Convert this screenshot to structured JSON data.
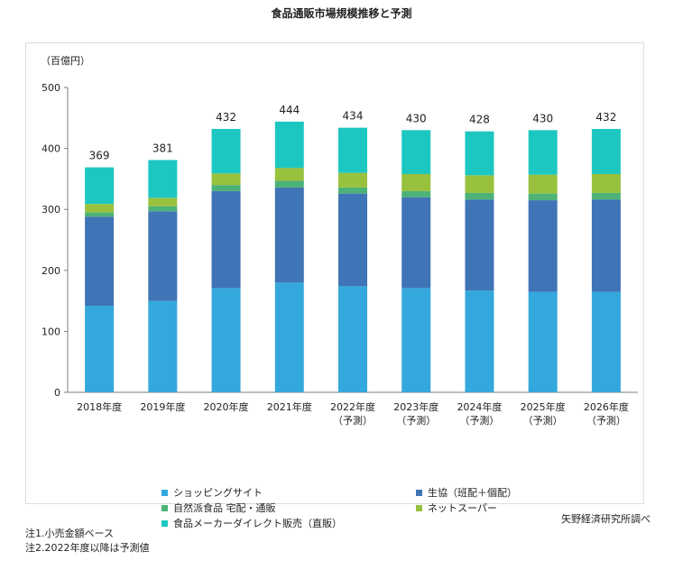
{
  "chart_data": {
    "type": "bar",
    "stacked": true,
    "title": "食品通販市場規模推移と予測",
    "ylabel": "（百億円）",
    "ylim": [
      0,
      500
    ],
    "yticks": [
      0,
      100,
      200,
      300,
      400,
      500
    ],
    "grid": false,
    "legend_position": "bottom",
    "categories": [
      [
        "2018年度"
      ],
      [
        "2019年度"
      ],
      [
        "2020年度"
      ],
      [
        "2021年度"
      ],
      [
        "2022年度",
        "（予測）"
      ],
      [
        "2023年度",
        "（予測）"
      ],
      [
        "2024年度",
        "（予測）"
      ],
      [
        "2025年度",
        "（予測）"
      ],
      [
        "2026年度",
        "（予測）"
      ]
    ],
    "totals": [
      369,
      381,
      432,
      444,
      434,
      430,
      428,
      430,
      432
    ],
    "series": [
      {
        "name": "ショッピングサイト",
        "color": "#34a8dc",
        "values": [
          142,
          150,
          171,
          180,
          174,
          171,
          167,
          165,
          165
        ]
      },
      {
        "name": "生協（班配＋個配）",
        "color": "#3f74b6",
        "values": [
          146,
          147,
          159,
          156,
          152,
          149,
          149,
          150,
          151
        ]
      },
      {
        "name": "自然派食品 宅配・通販",
        "color": "#4cb277",
        "values": [
          7,
          8,
          10,
          11,
          10,
          10,
          11,
          11,
          11
        ]
      },
      {
        "name": "ネットスーパー",
        "color": "#98c13d",
        "values": [
          14,
          14,
          19,
          21,
          24,
          28,
          29,
          31,
          31
        ]
      },
      {
        "name": "食品メーカーダイレクト販売（直販）",
        "color": "#1dc7c1",
        "values": [
          60,
          62,
          73,
          76,
          74,
          72,
          72,
          73,
          74
        ]
      }
    ]
  },
  "source": "矢野経済研究所調べ",
  "notes": [
    "注1.小売金額ベース",
    "注2.2022年度以降は予測値"
  ]
}
